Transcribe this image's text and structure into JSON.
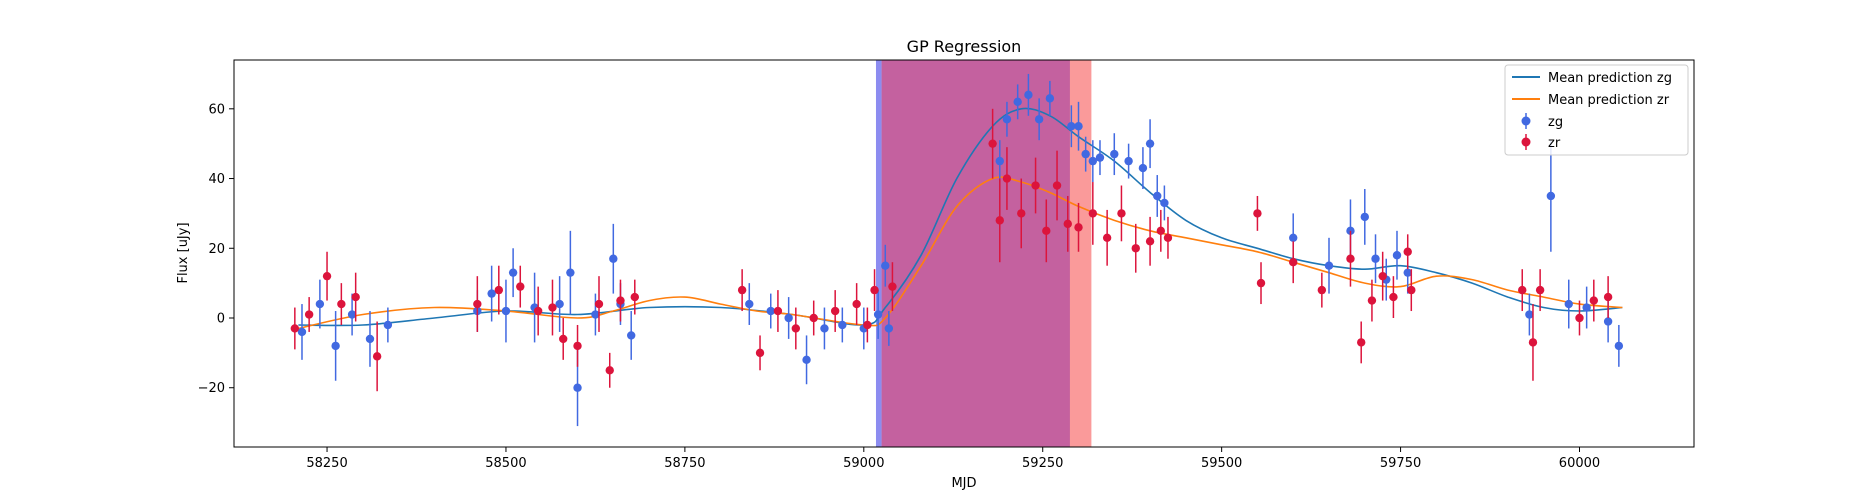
{
  "chart_data": {
    "type": "scatter",
    "title": "GP Regression",
    "xlabel": "MJD",
    "ylabel": "Flux [uJy]",
    "xlim": [
      58120,
      60160
    ],
    "ylim": [
      -37,
      74
    ],
    "x_ticks": [
      58250,
      58500,
      58750,
      59000,
      59250,
      59500,
      59750,
      60000
    ],
    "y_ticks": [
      -20,
      0,
      20,
      40,
      60
    ],
    "legend_position": "top-right",
    "colors": {
      "zg_mean": "#1f77b4",
      "zr_mean": "#ff7f0e",
      "zg_points": "#4169e1",
      "zr_points": "#dc143c",
      "band_zg": "#8c8cf0",
      "band_zr": "#fa9a9a",
      "band_overlap": "#c4619f"
    },
    "shaded_regions": [
      {
        "band": "zg",
        "x0": 59017,
        "x1": 59288
      },
      {
        "band": "zr",
        "x0": 59025,
        "x1": 59318
      }
    ],
    "series": [
      {
        "name": "Mean prediction zg",
        "kind": "line",
        "x": [
          58210,
          58300,
          58400,
          58500,
          58600,
          58700,
          58800,
          58900,
          59000,
          59030,
          59080,
          59130,
          59180,
          59220,
          59260,
          59300,
          59350,
          59400,
          59450,
          59500,
          59550,
          59600,
          59650,
          59700,
          59750,
          59800,
          59850,
          59900,
          59950,
          60000,
          60060
        ],
        "y": [
          -2,
          -2,
          0,
          2,
          1,
          3,
          3,
          1,
          -2,
          3,
          18,
          40,
          55,
          60,
          58,
          52,
          45,
          36,
          28,
          23,
          20,
          17,
          15,
          14,
          15,
          13,
          10,
          6,
          3,
          2,
          3
        ]
      },
      {
        "name": "Mean prediction zr",
        "kind": "line",
        "x": [
          58210,
          58300,
          58400,
          58500,
          58600,
          58650,
          58700,
          58750,
          58800,
          58850,
          58900,
          59000,
          59030,
          59080,
          59130,
          59180,
          59220,
          59260,
          59300,
          59350,
          59400,
          59450,
          59500,
          59550,
          59600,
          59650,
          59700,
          59750,
          59800,
          59850,
          59900,
          59950,
          60000,
          60060
        ],
        "y": [
          -3,
          1,
          3,
          2,
          0,
          2,
          5,
          6,
          4,
          2,
          1,
          -2,
          0,
          15,
          32,
          40,
          39,
          36,
          32,
          28,
          25,
          23,
          21,
          19,
          16,
          13,
          10,
          9,
          12,
          11,
          8,
          6,
          4,
          3
        ]
      },
      {
        "name": "zg",
        "kind": "errorbar-scatter",
        "x": [
          58215,
          58240,
          58262,
          58285,
          58310,
          58335,
          58460,
          58480,
          58500,
          58510,
          58540,
          58575,
          58590,
          58600,
          58625,
          58650,
          58660,
          58675,
          58840,
          58870,
          58895,
          58920,
          58945,
          58970,
          59000,
          59020,
          59030,
          59035,
          59190,
          59200,
          59215,
          59230,
          59245,
          59260,
          59290,
          59300,
          59310,
          59320,
          59330,
          59350,
          59370,
          59390,
          59400,
          59410,
          59420,
          59600,
          59650,
          59680,
          59700,
          59715,
          59730,
          59745,
          59760,
          59930,
          59960,
          59985,
          60010,
          60040,
          60055
        ],
        "y": [
          -4,
          4,
          -8,
          1,
          -6,
          -2,
          2,
          7,
          2,
          13,
          3,
          4,
          13,
          -20,
          1,
          17,
          4,
          -5,
          4,
          2,
          0,
          -12,
          -3,
          -2,
          -3,
          1,
          15,
          -3,
          45,
          57,
          62,
          64,
          57,
          63,
          55,
          55,
          47,
          45,
          46,
          47,
          45,
          43,
          50,
          35,
          33,
          23,
          15,
          25,
          29,
          17,
          11,
          18,
          13,
          1,
          35,
          4,
          3,
          -1,
          -8
        ],
        "yerr": [
          8,
          7,
          10,
          6,
          8,
          5,
          6,
          8,
          9,
          7,
          10,
          8,
          12,
          11,
          6,
          10,
          6,
          7,
          6,
          5,
          6,
          7,
          6,
          5,
          6,
          7,
          6,
          5,
          6,
          5,
          5,
          6,
          6,
          5,
          6,
          7,
          5,
          6,
          5,
          6,
          5,
          6,
          7,
          6,
          5,
          7,
          8,
          9,
          8,
          7,
          6,
          7,
          6,
          6,
          16,
          7,
          6,
          6,
          6
        ]
      },
      {
        "name": "zr",
        "kind": "errorbar-scatter",
        "x": [
          58205,
          58225,
          58250,
          58270,
          58290,
          58320,
          58460,
          58490,
          58520,
          58545,
          58565,
          58580,
          58600,
          58630,
          58645,
          58660,
          58680,
          58830,
          58855,
          58880,
          58905,
          58930,
          58960,
          58990,
          59005,
          59015,
          59040,
          59180,
          59190,
          59200,
          59220,
          59240,
          59255,
          59270,
          59285,
          59300,
          59320,
          59340,
          59360,
          59380,
          59400,
          59415,
          59425,
          59550,
          59555,
          59600,
          59640,
          59680,
          59695,
          59710,
          59725,
          59740,
          59760,
          59765,
          59920,
          59935,
          59945,
          60000,
          60020,
          60040
        ],
        "y": [
          -3,
          1,
          12,
          4,
          6,
          -11,
          4,
          8,
          9,
          2,
          3,
          -6,
          -8,
          4,
          -15,
          5,
          6,
          8,
          -10,
          2,
          -3,
          0,
          2,
          4,
          -2,
          8,
          9,
          50,
          28,
          40,
          30,
          38,
          25,
          38,
          27,
          26,
          30,
          23,
          30,
          20,
          22,
          25,
          23,
          30,
          10,
          16,
          8,
          17,
          -7,
          5,
          12,
          6,
          19,
          8,
          8,
          -7,
          8,
          0,
          5,
          6
        ],
        "yerr": [
          6,
          5,
          7,
          6,
          7,
          10,
          8,
          7,
          6,
          7,
          8,
          6,
          6,
          8,
          5,
          6,
          5,
          6,
          5,
          6,
          6,
          5,
          6,
          6,
          5,
          6,
          7,
          10,
          12,
          9,
          10,
          8,
          9,
          10,
          8,
          7,
          9,
          8,
          8,
          7,
          7,
          6,
          6,
          5,
          6,
          6,
          5,
          8,
          6,
          6,
          7,
          6,
          5,
          6,
          6,
          11,
          6,
          5,
          6,
          6
        ]
      }
    ]
  }
}
